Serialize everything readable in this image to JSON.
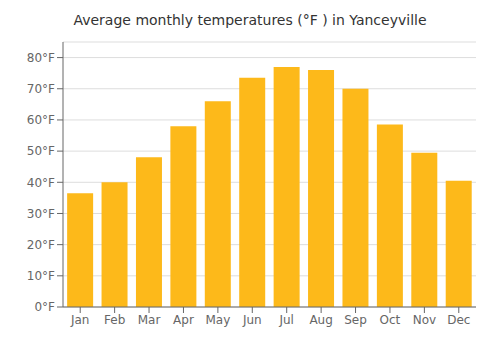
{
  "chart_data": {
    "type": "bar",
    "title": "Average monthly temperatures (°F ) in Yanceyville",
    "categories": [
      "Jan",
      "Feb",
      "Mar",
      "Apr",
      "May",
      "Jun",
      "Jul",
      "Aug",
      "Sep",
      "Oct",
      "Nov",
      "Dec"
    ],
    "values": [
      36.5,
      40.0,
      48.0,
      58.0,
      66.0,
      73.5,
      77.0,
      76.0,
      70.0,
      58.5,
      49.5,
      40.5
    ],
    "color": "#FDB91A",
    "ylim": [
      0,
      85
    ],
    "yticks": [
      {
        "value": 0,
        "label": "0°F"
      },
      {
        "value": 10,
        "label": "10°F"
      },
      {
        "value": 20,
        "label": "20°F"
      },
      {
        "value": 30,
        "label": "30°F"
      },
      {
        "value": 40,
        "label": "40°F"
      },
      {
        "value": 50,
        "label": "50°F"
      },
      {
        "value": 60,
        "label": "60°F"
      },
      {
        "value": 70,
        "label": "70°F"
      },
      {
        "value": 80,
        "label": "80°F"
      }
    ],
    "grid": true
  }
}
